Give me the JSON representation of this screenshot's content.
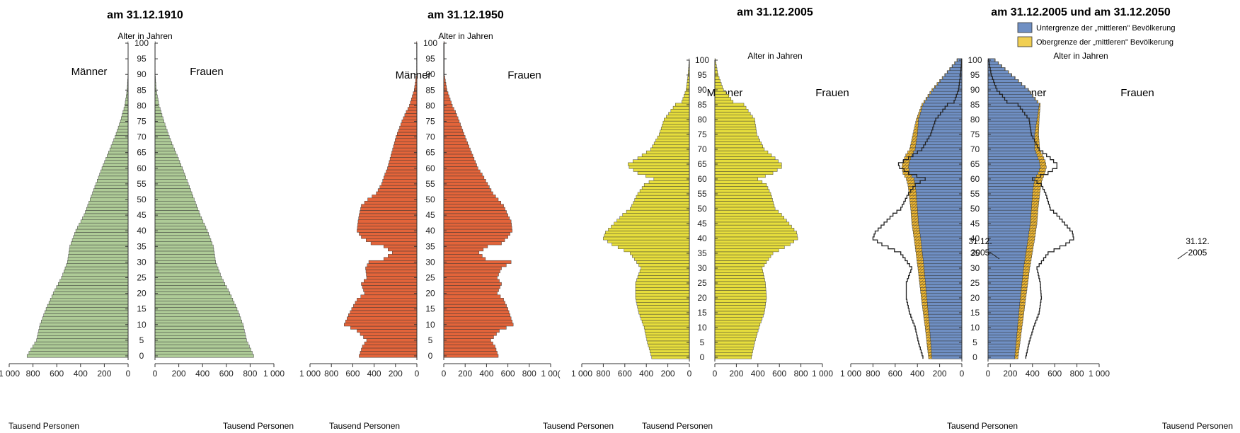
{
  "colors": {
    "p1910": "#aecb97",
    "p1950": "#e3643a",
    "p2005": "#e6dd3c",
    "lower": "#6f8fc3",
    "upper": "#f1cf52",
    "line": "#4a4a4a",
    "outline": "#222222"
  },
  "chart_data": [
    {
      "type": "bar",
      "orientation": "horizontal-population-pyramid",
      "title": "am 31.12.1910",
      "age_axis_label": "Alter in Jahren",
      "left_label": "Männer",
      "right_label": "Frauen",
      "xlabel_left": "Tausend Personen",
      "xlabel_right": "Tausend Personen",
      "xlim": [
        0,
        1000
      ],
      "age_ticks": [
        0,
        5,
        10,
        15,
        20,
        25,
        30,
        35,
        40,
        45,
        50,
        55,
        60,
        65,
        70,
        75,
        80,
        85,
        90,
        95,
        100
      ],
      "left_ticks": [
        "1 000",
        "800",
        "600",
        "400",
        "200",
        "0"
      ],
      "right_ticks": [
        "0",
        "200",
        "400",
        "600",
        "800",
        "1 000"
      ],
      "age_knots": [
        0,
        5,
        10,
        15,
        20,
        25,
        30,
        35,
        40,
        45,
        50,
        55,
        60,
        65,
        70,
        75,
        80,
        85,
        90
      ],
      "men_knots": [
        850,
        770,
        740,
        690,
        630,
        560,
        510,
        490,
        440,
        370,
        320,
        270,
        220,
        165,
        110,
        65,
        28,
        8,
        1
      ],
      "women_knots": [
        830,
        770,
        740,
        690,
        630,
        560,
        510,
        490,
        440,
        380,
        330,
        280,
        230,
        175,
        120,
        75,
        35,
        10,
        2
      ]
    },
    {
      "type": "bar",
      "orientation": "horizontal-population-pyramid",
      "title": "am 31.12.1950",
      "age_axis_label": "Alter in Jahren",
      "left_label": "Männer",
      "right_label": "Frauen",
      "xlabel_left": "Tausend Personen",
      "xlabel_right": "Tausend Personen",
      "xlim": [
        0,
        1000
      ],
      "age_ticks": [
        0,
        5,
        10,
        15,
        20,
        25,
        30,
        35,
        40,
        45,
        50,
        55,
        60,
        65,
        70,
        75,
        80,
        85,
        90,
        95,
        100
      ],
      "left_ticks": [
        "1 000",
        "800",
        "600",
        "400",
        "200",
        "0"
      ],
      "right_ticks": [
        "0",
        "200",
        "400",
        "600",
        "800",
        "1 00("
      ],
      "age_knots": [
        0,
        3,
        5,
        8,
        10,
        13,
        15,
        18,
        20,
        23,
        25,
        28,
        30,
        31,
        33,
        35,
        36,
        38,
        40,
        43,
        45,
        48,
        50,
        52,
        55,
        58,
        60,
        65,
        70,
        75,
        78,
        80,
        85,
        90
      ],
      "men_knots": [
        540,
        510,
        470,
        560,
        680,
        640,
        610,
        560,
        490,
        520,
        470,
        480,
        450,
        310,
        230,
        310,
        430,
        520,
        560,
        550,
        540,
        520,
        460,
        380,
        330,
        300,
        275,
        235,
        195,
        140,
        100,
        70,
        25,
        3
      ],
      "women_knots": [
        510,
        480,
        440,
        520,
        650,
        620,
        600,
        560,
        500,
        540,
        500,
        540,
        630,
        390,
        330,
        410,
        540,
        600,
        640,
        630,
        600,
        560,
        510,
        460,
        410,
        360,
        320,
        260,
        200,
        145,
        110,
        80,
        30,
        5
      ]
    },
    {
      "type": "bar",
      "orientation": "horizontal-population-pyramid",
      "title": "am 31.12.2005",
      "age_axis_label": "Alter in Jahren",
      "left_label": "Männer",
      "right_label": "Frauen",
      "xlabel_left": "Tausend Personen",
      "xlabel_right": "",
      "xlim": [
        0,
        1000
      ],
      "age_ticks": [
        0,
        5,
        10,
        15,
        20,
        25,
        30,
        35,
        40,
        45,
        50,
        55,
        60,
        65,
        70,
        75,
        80,
        85,
        90,
        95,
        100
      ],
      "left_ticks": [
        "1 000",
        "800",
        "600",
        "400",
        "200",
        "0"
      ],
      "right_ticks": [
        "0",
        "200",
        "400",
        "600",
        "800",
        "1 000"
      ],
      "age_knots": [
        0,
        5,
        10,
        15,
        20,
        25,
        30,
        35,
        38,
        40,
        42,
        45,
        48,
        50,
        55,
        58,
        60,
        62,
        64,
        65,
        67,
        70,
        75,
        80,
        85,
        86,
        88,
        90,
        95,
        100
      ],
      "men_knots": [
        350,
        390,
        420,
        470,
        500,
        500,
        450,
        550,
        720,
        800,
        780,
        700,
        620,
        550,
        480,
        420,
        330,
        480,
        560,
        570,
        480,
        360,
        280,
        235,
        130,
        70,
        50,
        30,
        12,
        2
      ],
      "women_knots": [
        340,
        370,
        410,
        460,
        480,
        470,
        440,
        540,
        700,
        770,
        760,
        690,
        620,
        560,
        520,
        480,
        400,
        540,
        620,
        620,
        560,
        460,
        390,
        370,
        270,
        170,
        130,
        80,
        30,
        5
      ]
    },
    {
      "type": "bar",
      "orientation": "horizontal-population-pyramid",
      "title": "am 31.12.2005 und am 31.12.2050",
      "age_axis_label": "Alter in Jahren",
      "left_label": "Männer",
      "right_label": "Frauen",
      "xlabel_left": "Tausend Personen",
      "xlabel_right": "Tausend Personen",
      "xlim": [
        0,
        1000
      ],
      "age_ticks": [
        0,
        5,
        10,
        15,
        20,
        25,
        30,
        35,
        40,
        45,
        50,
        55,
        60,
        65,
        70,
        75,
        80,
        85,
        90,
        95,
        100
      ],
      "left_ticks": [
        "1 000",
        "800",
        "600",
        "400",
        "200",
        "0"
      ],
      "right_ticks": [
        "0",
        "200",
        "400",
        "600",
        "800",
        "1 000"
      ],
      "legend": [
        "Untergrenze der „mittleren\" Bevölkerung",
        "Obergrenze der „mittleren\" Bevölkerung"
      ],
      "annotation_left": [
        "31.12.",
        "2005"
      ],
      "annotation_right": [
        "31.12.",
        "2005"
      ],
      "series": [
        {
          "name": "Untergrenze der „mittleren\" Bevölkerung",
          "age_knots": [
            0,
            10,
            20,
            30,
            40,
            45,
            50,
            55,
            58,
            60,
            62,
            64,
            66,
            68,
            70,
            75,
            80,
            85,
            90,
            95,
            100
          ],
          "men_knots": [
            270,
            290,
            315,
            340,
            370,
            390,
            400,
            410,
            420,
            430,
            470,
            480,
            470,
            450,
            420,
            400,
            390,
            350,
            260,
            150,
            40
          ],
          "women_knots": [
            240,
            265,
            290,
            320,
            360,
            380,
            390,
            400,
            410,
            420,
            450,
            470,
            460,
            440,
            420,
            420,
            440,
            460,
            360,
            210,
            60
          ]
        },
        {
          "name": "Obergrenze der „mittleren\" Bevölkerung",
          "age_knots": [
            0,
            10,
            20,
            30,
            40,
            45,
            50,
            55,
            58,
            60,
            62,
            64,
            66,
            68,
            70,
            75,
            80,
            85,
            90,
            95,
            100
          ],
          "men_knots": [
            300,
            330,
            365,
            395,
            430,
            450,
            460,
            475,
            485,
            500,
            530,
            540,
            530,
            505,
            470,
            440,
            410,
            360,
            270,
            155,
            45
          ],
          "women_knots": [
            270,
            305,
            340,
            375,
            420,
            440,
            450,
            465,
            475,
            490,
            510,
            525,
            515,
            490,
            465,
            455,
            460,
            470,
            365,
            215,
            65
          ]
        },
        {
          "name": "31.12.2005",
          "age_knots": [
            0,
            5,
            10,
            15,
            20,
            25,
            30,
            35,
            38,
            40,
            42,
            45,
            48,
            50,
            55,
            58,
            60,
            62,
            64,
            65,
            67,
            70,
            75,
            80,
            85,
            86,
            88,
            90,
            95,
            100
          ],
          "men_knots": [
            350,
            390,
            420,
            470,
            500,
            500,
            450,
            550,
            720,
            800,
            780,
            700,
            620,
            550,
            480,
            420,
            330,
            480,
            560,
            570,
            480,
            360,
            280,
            235,
            130,
            70,
            50,
            30,
            12,
            2
          ],
          "women_knots": [
            340,
            370,
            410,
            460,
            480,
            470,
            440,
            540,
            700,
            770,
            760,
            690,
            620,
            560,
            520,
            480,
            400,
            540,
            620,
            620,
            560,
            460,
            390,
            370,
            270,
            170,
            130,
            80,
            30,
            5
          ]
        }
      ]
    }
  ]
}
